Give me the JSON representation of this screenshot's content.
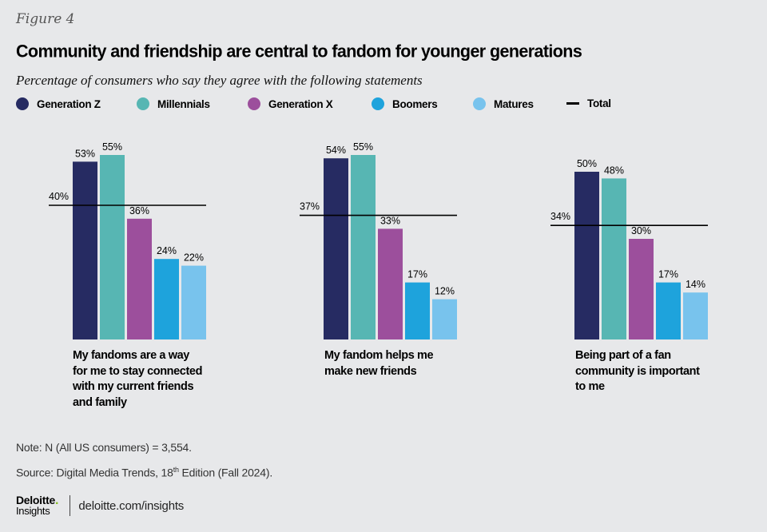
{
  "figure_label": "Figure 4",
  "colors": {
    "background": "#e7e8ea",
    "Generation Z": "#262b62",
    "Millennials": "#57b6b3",
    "Generation X": "#9c4f9c",
    "Boomers": "#1ea3dc",
    "Matures": "#78c3ed",
    "Total": "#000000"
  },
  "legend": [
    {
      "label": "Generation Z",
      "color": "#262b62",
      "shape": "dot"
    },
    {
      "label": "Millennials",
      "color": "#57b6b3",
      "shape": "dot"
    },
    {
      "label": "Generation X",
      "color": "#9c4f9c",
      "shape": "dot"
    },
    {
      "label": "Boomers",
      "color": "#1ea3dc",
      "shape": "dot"
    },
    {
      "label": "Matures",
      "color": "#78c3ed",
      "shape": "dot"
    },
    {
      "label": "Total",
      "color": "#000000",
      "shape": "line"
    }
  ],
  "chart_data": {
    "type": "bar",
    "title": "Community and friendship are central to fandom for younger generations",
    "subtitle": "Percentage of consumers who say they agree with the following statements",
    "xlabel": "",
    "ylabel": "",
    "ylim": [
      0,
      60
    ],
    "grid": false,
    "legend_position": "top",
    "unit": "%",
    "categories": [
      "My fandoms are a way for me to stay connected with my current friends and family",
      "My fandom helps me make new friends",
      "Being part of a fan community is important to me"
    ],
    "category_lines": [
      [
        "My fandoms are a way",
        "for me to stay connected",
        "with my current friends",
        "and family"
      ],
      [
        "My fandom helps me",
        "make new friends"
      ],
      [
        "Being part of a fan",
        "community is important",
        "to me"
      ]
    ],
    "series": [
      {
        "name": "Generation Z",
        "values": [
          53,
          54,
          50
        ]
      },
      {
        "name": "Millennials",
        "values": [
          55,
          55,
          48
        ]
      },
      {
        "name": "Generation X",
        "values": [
          36,
          33,
          30
        ]
      },
      {
        "name": "Boomers",
        "values": [
          24,
          17,
          17
        ]
      },
      {
        "name": "Matures",
        "values": [
          22,
          12,
          14
        ]
      }
    ],
    "total": {
      "name": "Total",
      "values": [
        40,
        37,
        34
      ]
    }
  },
  "notes": {
    "note": "Note: N (All US consumers) = 3,554.",
    "source_prefix": "Source: Digital Media Trends, 18",
    "source_sup": "th",
    "source_suffix": " Edition (Fall 2024)."
  },
  "footer": {
    "logo_line1": "Deloitte",
    "logo_dot": ".",
    "logo_line2": "Insights",
    "url": "deloitte.com/insights"
  }
}
